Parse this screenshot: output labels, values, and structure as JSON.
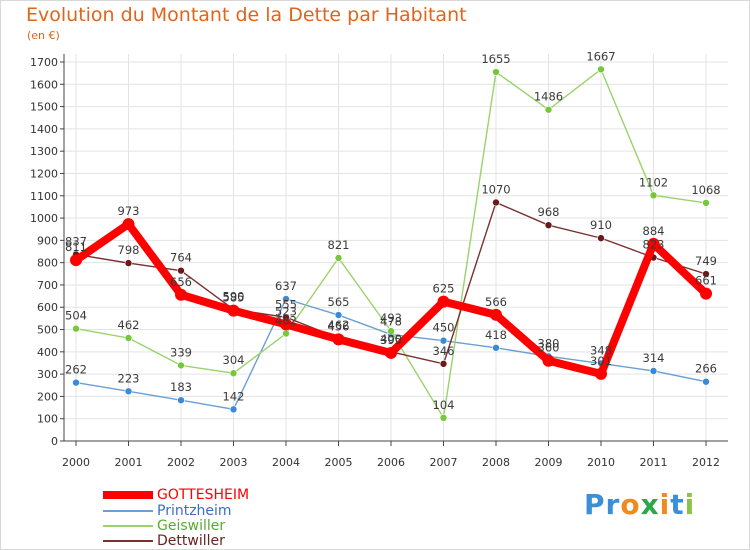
{
  "colors": {
    "title": "#e0651b",
    "grid": "#e3e3e3",
    "axis": "#444444",
    "text": "#333333"
  },
  "logo": {
    "letters": [
      {
        "ch": "P",
        "color": "#3b8fd6"
      },
      {
        "ch": "r",
        "color": "#3b8fd6"
      },
      {
        "ch": "o",
        "color": "#ef8a1e"
      },
      {
        "ch": "x",
        "color": "#2aa84a"
      },
      {
        "ch": "i",
        "color": "#ef8a1e"
      },
      {
        "ch": "t",
        "color": "#3b8fd6"
      },
      {
        "ch": "i",
        "color": "#8bc34a"
      }
    ]
  },
  "chart_data": {
    "type": "line",
    "title": "Evolution du Montant de la Dette par Habitant",
    "unit": "(en €)",
    "x": [
      "2000",
      "2001",
      "2002",
      "2003",
      "2004",
      "2005",
      "2006",
      "2007",
      "2008",
      "2009",
      "2010",
      "2011",
      "2012"
    ],
    "ylim": [
      0,
      1700
    ],
    "yticks": [
      0,
      100,
      200,
      300,
      400,
      500,
      600,
      700,
      800,
      900,
      1000,
      1100,
      1200,
      1300,
      1400,
      1500,
      1600,
      1700
    ],
    "grid": true,
    "legend_position": "bottom-left",
    "series": [
      {
        "name": "GOTTESHEIM",
        "color": "#ff0000",
        "text_color": "#ff0000",
        "marker_color": "#ff0000",
        "values": [
          811,
          973,
          656,
          585,
          523,
          456,
          395,
          625,
          566,
          360,
          301,
          884,
          661
        ],
        "label_text": [
          "811",
          "973",
          "656",
          "585",
          "523",
          "456",
          "395",
          "625",
          "566",
          "360",
          "301",
          "884",
          "661"
        ]
      },
      {
        "name": "Printzheim",
        "color": "#6a9fd4",
        "text_color": "#3b6fc4",
        "marker_color": "#3a8ad8",
        "values": [
          262,
          223,
          183,
          142,
          637,
          565,
          478,
          450,
          418,
          380,
          348,
          314,
          266
        ],
        "label_text": [
          "262",
          "223",
          "183",
          "142",
          "637",
          "565",
          "478",
          "450",
          "418",
          "380",
          "348",
          "314",
          "266"
        ]
      },
      {
        "name": "Geiswiller",
        "color": "#9ad36a",
        "text_color": "#5aa832",
        "marker_color": "#74c83a",
        "values": [
          504,
          462,
          339,
          304,
          482,
          821,
          493,
          104,
          1655,
          1486,
          1667,
          1102,
          1068
        ],
        "label_text": [
          "504",
          "462",
          "339",
          "304",
          "482",
          "821",
          "493",
          "104",
          "1655",
          "1486",
          "1667",
          "1102",
          "1068"
        ]
      },
      {
        "name": "Dettwiller",
        "color": "#7a3030",
        "text_color": "#6a2020",
        "marker_color": "#6a1a1a",
        "values": [
          837,
          798,
          764,
          590,
          555,
          462,
          400,
          346,
          1070,
          968,
          910,
          823,
          749
        ],
        "label_text": [
          "837",
          "798",
          "764",
          "590",
          "555",
          "462",
          "400",
          "346",
          "1070",
          "968",
          "910",
          "823",
          "749"
        ]
      }
    ]
  }
}
